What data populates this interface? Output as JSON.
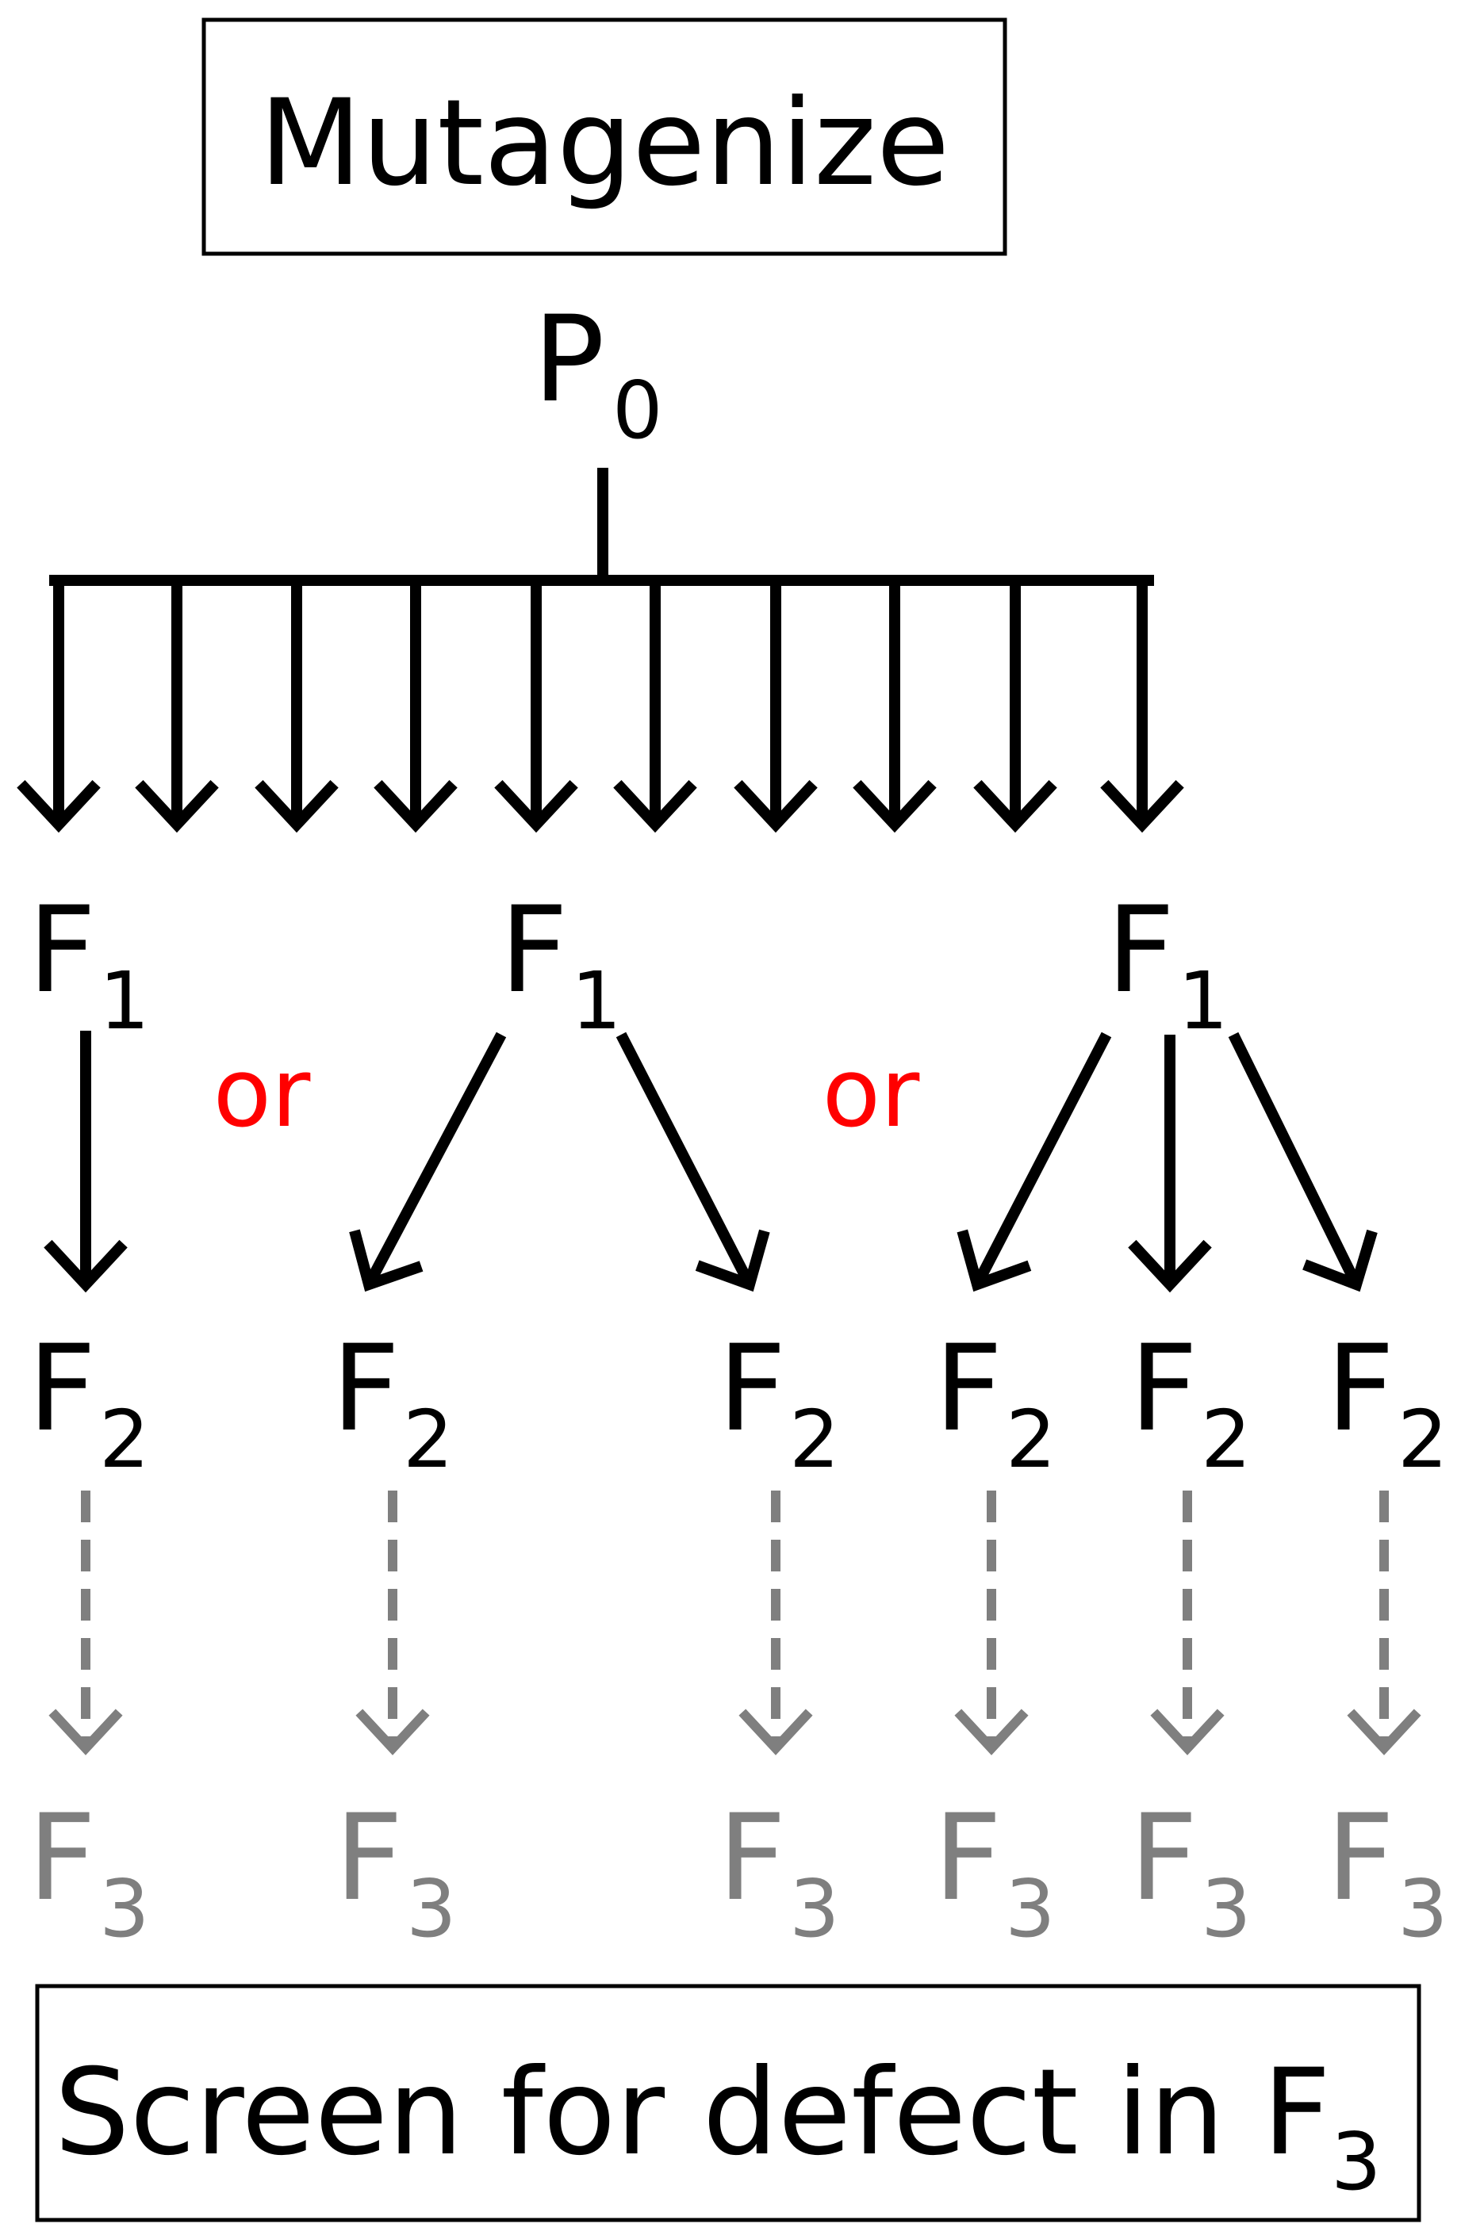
{
  "top_box": {
    "text": "Mutagenize"
  },
  "parent": {
    "letter": "P",
    "sub": "0"
  },
  "f1_groups": [
    {
      "letter": "F",
      "sub": "1"
    },
    {
      "letter": "F",
      "sub": "1"
    },
    {
      "letter": "F",
      "sub": "1"
    }
  ],
  "or_labels": [
    "or",
    "or"
  ],
  "f2_nodes": [
    {
      "letter": "F",
      "sub": "2"
    },
    {
      "letter": "F",
      "sub": "2"
    },
    {
      "letter": "F",
      "sub": "2"
    },
    {
      "letter": "F",
      "sub": "2"
    },
    {
      "letter": "F",
      "sub": "2"
    },
    {
      "letter": "F",
      "sub": "2"
    }
  ],
  "f3_nodes": [
    {
      "letter": "F",
      "sub": "3"
    },
    {
      "letter": "F",
      "sub": "3"
    },
    {
      "letter": "F",
      "sub": "3"
    },
    {
      "letter": "F",
      "sub": "3"
    },
    {
      "letter": "F",
      "sub": "3"
    },
    {
      "letter": "F",
      "sub": "3"
    }
  ],
  "bottom_box": {
    "text": "Screen for defect in ",
    "letter": "F",
    "sub": "3"
  },
  "colors": {
    "main": "#000000",
    "or": "#ff0000",
    "f3": "#7f7f7f"
  }
}
